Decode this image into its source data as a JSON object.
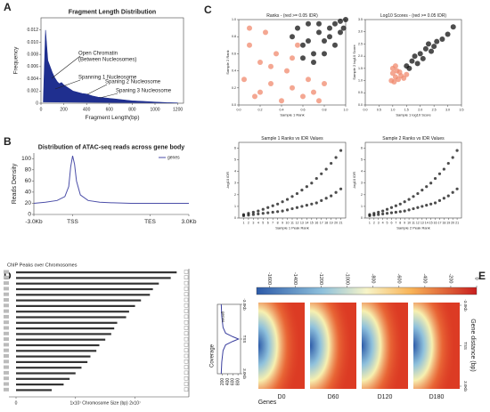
{
  "panels": [
    "A",
    "B",
    "C",
    "D",
    "E"
  ],
  "chart_data": [
    {
      "type": "line",
      "title": "Fragment Length Distribution",
      "x_label": "Fragment Length(bp)",
      "y_label": "Frequency",
      "annotations": [
        "Open Chromatin",
        "(Between Nucleosomes)",
        "Spanning 1 Nucleosome",
        "Spaning 2 Nucleosome",
        "Spaning 3 Nucleosome"
      ],
      "color": "#1f2f8f",
      "x": [
        20,
        40,
        60,
        80,
        100,
        120,
        140,
        160,
        180,
        200,
        240,
        280,
        320,
        360,
        400,
        450,
        500,
        550,
        600,
        700,
        800,
        900,
        1000,
        1100,
        1200
      ],
      "values": [
        0.0002,
        0.012,
        0.007,
        0.006,
        0.005,
        0.0042,
        0.0036,
        0.0032,
        0.0034,
        0.003,
        0.0025,
        0.002,
        0.0018,
        0.0016,
        0.0015,
        0.0012,
        0.001,
        0.0009,
        0.0008,
        0.0006,
        0.0004,
        0.0003,
        0.0002,
        0.0001,
        5e-05
      ],
      "xlim": [
        0,
        1250
      ],
      "xticks": [
        0,
        200,
        400,
        600,
        800,
        1000,
        1200
      ],
      "ylim": [
        0,
        0.014
      ],
      "yticks": [
        0,
        0.002,
        0.004,
        0.006,
        0.008,
        {
          "value": 0.01,
          "label": "0.010"
        },
        0.012
      ]
    },
    {
      "type": "line",
      "title": "Distribution of ATAC-seq reads across gene body",
      "y_label": "Reads Density",
      "series": [
        {
          "name": "genes",
          "color": "#4b4ea8",
          "x": [
            0,
            0.3,
            0.6,
            0.8,
            0.9,
            0.95,
            1,
            1.05,
            1.1,
            1.2,
            1.4,
            1.7,
            2,
            2.5,
            3,
            3.3,
            3.6,
            4
          ],
          "values": [
            20,
            22,
            25,
            32,
            50,
            85,
            105,
            90,
            60,
            35,
            25,
            22,
            21,
            20,
            20,
            20,
            20,
            20
          ]
        }
      ],
      "xlim": [
        0,
        4
      ],
      "xticks": [
        {
          "value": 0,
          "label": "-3.0Kb"
        },
        {
          "value": 1,
          "label": "TSS"
        },
        {
          "value": 3,
          "label": "TES"
        },
        {
          "value": 4,
          "label": "3.0Kb"
        }
      ],
      "ylim": [
        0,
        110
      ],
      "yticks": [
        0,
        20,
        40,
        60,
        80,
        100
      ],
      "legend": "upper right"
    },
    {
      "type": "scatter",
      "title": "Ranks - (red >= 0.05 IDR)",
      "x_label": "Sample 1 Rank",
      "y_label": "Sample 2 Rank",
      "xlim": [
        0,
        1
      ],
      "xticks": [
        {
          "value": 0,
          "label": "0.0"
        },
        0.2,
        0.4,
        0.6,
        0.8,
        {
          "value": 1,
          "label": "1.0"
        }
      ],
      "ylim": [
        0,
        1
      ],
      "yticks": [
        {
          "value": 0,
          "label": "0.0"
        },
        0.2,
        0.4,
        0.6,
        0.8,
        {
          "value": 1,
          "label": "1.0"
        }
      ],
      "series": [
        {
          "color": "#f08a6e",
          "x": [
            0.05,
            0.1,
            0.15,
            0.2,
            0.25,
            0.3,
            0.35,
            0.4,
            0.45,
            0.5,
            0.55,
            0.6,
            0.65,
            0.7,
            0.1,
            0.2,
            0.3,
            0.5,
            0.75,
            0.8
          ],
          "values": [
            0.3,
            0.7,
            0.1,
            0.5,
            0.85,
            0.25,
            0.6,
            0.05,
            0.4,
            0.2,
            0.7,
            0.1,
            0.3,
            0.15,
            0.9,
            0.15,
            0.45,
            0.55,
            0.05,
            0.25
          ]
        },
        {
          "color": "#111111",
          "x": [
            0.5,
            0.55,
            0.6,
            0.65,
            0.7,
            0.75,
            0.8,
            0.85,
            0.9,
            0.95,
            1,
            0.6,
            0.7,
            0.8,
            0.9,
            0.95,
            0.75,
            0.85,
            0.65,
            0.98
          ],
          "values": [
            0.8,
            0.9,
            0.7,
            0.95,
            0.6,
            0.85,
            0.75,
            0.9,
            0.95,
            0.85,
            1,
            0.55,
            0.5,
            0.6,
            0.7,
            0.98,
            0.95,
            0.8,
            0.75,
            0.9
          ]
        }
      ]
    },
    {
      "type": "scatter",
      "title": "Log10 Scores - (red >= 0.05 IDR)",
      "x_label": "Sample 1 log10 Score",
      "y_label": "Sample 2 log10 Score",
      "xlim": [
        0,
        3.5
      ],
      "xticks": [
        {
          "value": 0,
          "label": "0.0"
        },
        0.5,
        {
          "value": 1,
          "label": "1.0"
        },
        1.5,
        {
          "value": 2,
          "label": "2.0"
        },
        2.5,
        {
          "value": 3,
          "label": "3.0"
        },
        3.5
      ],
      "ylim": [
        0,
        3.5
      ],
      "yticks": [
        {
          "value": 0,
          "label": "0.0"
        },
        0.5,
        {
          "value": 1,
          "label": "1.0"
        },
        1.5,
        {
          "value": 2,
          "label": "2.0"
        },
        2.5,
        {
          "value": 3,
          "label": "3.0"
        },
        3.5
      ],
      "series": [
        {
          "color": "#f08a6e",
          "x": [
            0.95,
            1,
            1.05,
            1.1,
            1.15,
            1.2,
            1.3,
            1.4,
            1,
            1.1,
            1.25,
            1.5
          ],
          "values": [
            1,
            1.3,
            0.95,
            1.15,
            1.4,
            1.05,
            1.2,
            1.1,
            1.5,
            1.6,
            1.35,
            1.25
          ]
        },
        {
          "color": "#111111",
          "x": [
            1.5,
            1.7,
            1.9,
            2,
            2.2,
            2.4,
            2.6,
            2.8,
            3,
            3.2,
            1.8,
            2.1,
            2.5,
            2.3,
            1.6
          ],
          "values": [
            1.6,
            1.8,
            1.7,
            2.1,
            2.3,
            2.2,
            2.6,
            2.7,
            2.9,
            3.2,
            2,
            1.9,
            2.4,
            2.5,
            1.5
          ]
        }
      ]
    },
    {
      "type": "scatter",
      "title": "Sample 1 Ranks vs IDR Values",
      "x_label": "Sample 1 Peak Rank",
      "y_label": "-log10 IDR",
      "xlim": [
        0,
        22
      ],
      "xticks": [
        1,
        2,
        3,
        4,
        5,
        6,
        7,
        8,
        9,
        10,
        11,
        12,
        13,
        14,
        15,
        16,
        17,
        18,
        19,
        20,
        21
      ],
      "ylim": [
        0,
        6.5
      ],
      "yticks": [
        0,
        1,
        2,
        3,
        4,
        5,
        6
      ],
      "series": [
        {
          "color": "#111111",
          "x": [
            1,
            2,
            3,
            4,
            5,
            6,
            7,
            8,
            9,
            10,
            11,
            12,
            13,
            14,
            15,
            16,
            17,
            18,
            19,
            20,
            21
          ],
          "values": [
            0.3,
            0.4,
            0.5,
            0.6,
            0.75,
            0.9,
            1.05,
            1.2,
            1.4,
            1.6,
            1.85,
            2.1,
            2.4,
            2.7,
            3,
            3.4,
            3.8,
            4.2,
            4.7,
            5.2,
            5.8
          ]
        },
        {
          "color": "#111111",
          "x": [
            1,
            2,
            3,
            4,
            5,
            6,
            7,
            8,
            9,
            10,
            11,
            12,
            13,
            14,
            15,
            16,
            17,
            18,
            19,
            20,
            21
          ],
          "values": [
            0.2,
            0.25,
            0.3,
            0.35,
            0.4,
            0.45,
            0.5,
            0.55,
            0.6,
            0.7,
            0.8,
            0.9,
            1,
            1.1,
            1.2,
            1.3,
            1.5,
            1.7,
            1.9,
            2.2,
            2.5
          ]
        }
      ]
    },
    {
      "type": "scatter",
      "title": "Sample 2 Ranks vs IDR Values",
      "x_label": "Sample 2 Peak Rank",
      "y_label": "-log10 IDR",
      "xlim": [
        0,
        22
      ],
      "xticks": [
        1,
        2,
        3,
        4,
        5,
        6,
        7,
        8,
        9,
        10,
        11,
        12,
        13,
        14,
        15,
        16,
        17,
        18,
        19,
        20,
        21
      ],
      "ylim": [
        0,
        6.5
      ],
      "yticks": [
        0,
        1,
        2,
        3,
        4,
        5,
        6
      ],
      "series": [
        {
          "color": "#111111",
          "x": [
            1,
            2,
            3,
            4,
            5,
            6,
            7,
            8,
            9,
            10,
            11,
            12,
            13,
            14,
            15,
            16,
            17,
            18,
            19,
            20,
            21
          ],
          "values": [
            0.3,
            0.4,
            0.5,
            0.6,
            0.75,
            0.9,
            1.05,
            1.2,
            1.4,
            1.6,
            1.85,
            2.1,
            2.4,
            2.7,
            3,
            3.4,
            3.8,
            4.2,
            4.7,
            5.2,
            5.8
          ]
        },
        {
          "color": "#111111",
          "x": [
            1,
            2,
            3,
            4,
            5,
            6,
            7,
            8,
            9,
            10,
            11,
            12,
            13,
            14,
            15,
            16,
            17,
            18,
            19,
            20,
            21
          ],
          "values": [
            0.2,
            0.25,
            0.3,
            0.35,
            0.4,
            0.45,
            0.5,
            0.55,
            0.6,
            0.7,
            0.8,
            0.9,
            1,
            1.1,
            1.2,
            1.3,
            1.5,
            1.7,
            1.9,
            2.2,
            2.5
          ]
        }
      ]
    },
    {
      "type": "track",
      "title": "ChIP Peaks over Chromosomes",
      "x_label": "Chromosome Size (bp)",
      "color": "#333333",
      "values": [
        27000000,
        26000000,
        24000000,
        23000000,
        22500000,
        21000000,
        20000000,
        19000000,
        18500000,
        17000000,
        16500000,
        16000000,
        15000000,
        14000000,
        13500000,
        12500000,
        12000000,
        11000000,
        10000000,
        9000000,
        8000000,
        6000000
      ],
      "xlim": [
        0,
        28000000
      ],
      "xticks": [
        0,
        {
          "value": 10000000,
          "label": "1x10⁷"
        },
        {
          "value": 20000000,
          "label": "2x10⁷"
        }
      ]
    },
    {
      "type": "line",
      "y_label": "Coverage",
      "series": [
        {
          "name": "genes",
          "color": "#3a3f9e",
          "x": [
            -3000,
            -2000,
            -1000,
            -500,
            -200,
            0,
            200,
            500,
            1000,
            2000,
            3000
          ],
          "values": [
            150,
            170,
            220,
            320,
            600,
            820,
            600,
            320,
            220,
            170,
            150
          ]
        }
      ],
      "xlim": [
        -3000,
        3000
      ],
      "xticks": [
        {
          "value": -3000,
          "label": "-3.0Kb"
        },
        {
          "value": 0,
          "label": "TSS"
        },
        {
          "value": 3000,
          "label": "3.0Kb"
        }
      ],
      "ylim": [
        0,
        900
      ],
      "yticks": [
        800,
        600,
        400,
        200
      ]
    },
    {
      "type": "heatmap",
      "x_label": "Genes",
      "y_label": "Gene distance (bp)",
      "columns": [
        "D0",
        "D60",
        "D120",
        "D180"
      ],
      "clim": [
        -1700,
        0
      ],
      "cticks": [
        -1600,
        -1400,
        -1200,
        -1000,
        -800,
        -600,
        -400,
        -200,
        0
      ],
      "yticks": [
        {
          "value": -3000,
          "label": "-3.0Kb"
        },
        {
          "value": 0,
          "label": "TSS"
        },
        {
          "value": 3000,
          "label": "3.0Kb"
        }
      ],
      "ylim": [
        -3000,
        3000
      ]
    }
  ]
}
